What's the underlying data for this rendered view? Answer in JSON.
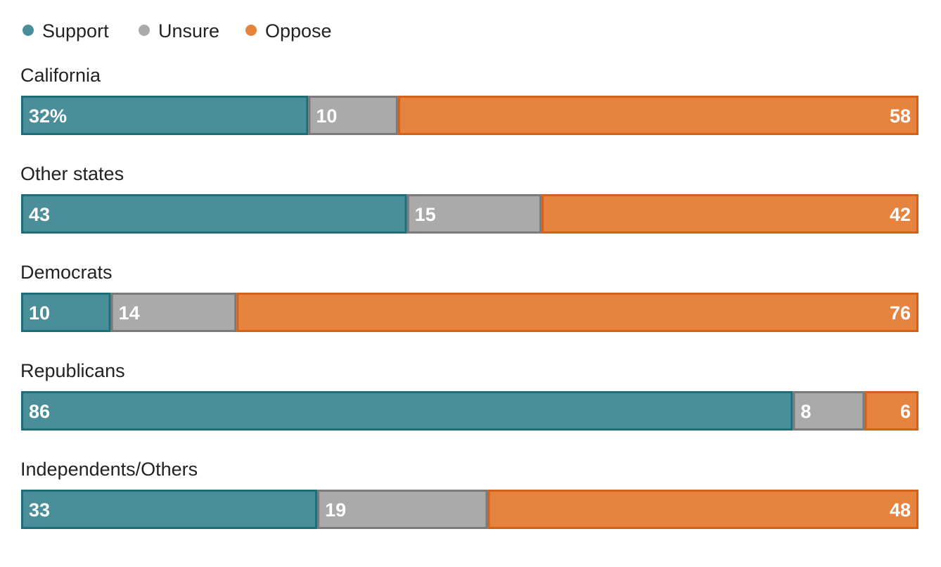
{
  "chart_data": {
    "type": "bar",
    "orientation": "horizontal",
    "stacked": true,
    "title": "",
    "xlabel": "",
    "ylabel": "",
    "xlim": [
      0,
      100
    ],
    "grid": false,
    "legend_position": "top-left",
    "categories": [
      "California",
      "Other states",
      "Democrats",
      "Republicans",
      "Independents/Others"
    ],
    "series": [
      {
        "name": "Support",
        "color": "#4a8e99",
        "border": "#1e6e79",
        "values": [
          32,
          43,
          10,
          86,
          33
        ]
      },
      {
        "name": "Unsure",
        "color": "#aaaaaa",
        "border": "#7a7a7a",
        "values": [
          10,
          15,
          14,
          8,
          19
        ]
      },
      {
        "name": "Oppose",
        "color": "#e6843f",
        "border": "#d0621b",
        "values": [
          58,
          42,
          76,
          6,
          48
        ]
      }
    ],
    "value_labels": [
      [
        "32%",
        "10",
        "58"
      ],
      [
        "43",
        "15",
        "42"
      ],
      [
        "10",
        "14",
        "76"
      ],
      [
        "86",
        "8",
        "6"
      ],
      [
        "33",
        "19",
        "48"
      ]
    ]
  }
}
